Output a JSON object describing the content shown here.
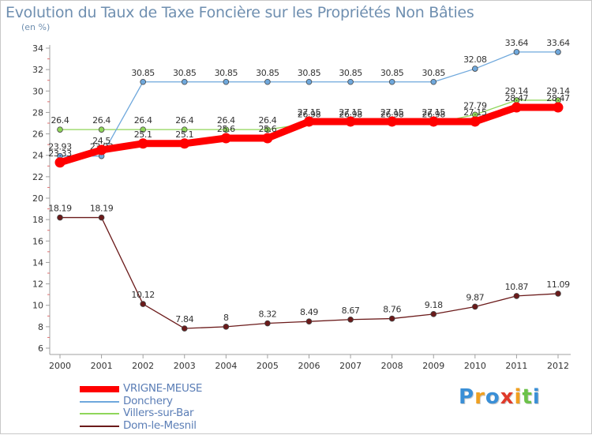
{
  "chart_data": {
    "type": "line",
    "title": "Evolution du Taux de Taxe Foncière sur les Propriétés Non Bâties",
    "subtitle": "(en %)",
    "x": [
      2000,
      2001,
      2002,
      2003,
      2004,
      2005,
      2006,
      2007,
      2008,
      2009,
      2010,
      2011,
      2012
    ],
    "ylim": [
      6,
      34
    ],
    "yticks": [
      6,
      8,
      10,
      12,
      14,
      16,
      18,
      20,
      22,
      24,
      26,
      28,
      30,
      32,
      34
    ],
    "grid": false,
    "legend_position": "bottom-left",
    "series": [
      {
        "name": "Dom-le-Mesnil",
        "color": "#6b1a1a",
        "style": "thin",
        "values": [
          18.19,
          18.19,
          10.12,
          7.84,
          8,
          8.32,
          8.49,
          8.67,
          8.76,
          9.18,
          9.87,
          10.87,
          11.09
        ],
        "labels": [
          "18.19",
          "18.19",
          "10.12",
          "7.84",
          "8",
          "8.32",
          "8.49",
          "8.67",
          "8.76",
          "9.18",
          "9.87",
          "10.87",
          "11.09"
        ]
      },
      {
        "name": "Villers-sur-Bar",
        "color": "#8fd65a",
        "style": "thin",
        "values": [
          26.4,
          26.4,
          26.4,
          26.4,
          26.4,
          26.4,
          26.98,
          26.98,
          26.98,
          26.98,
          27.79,
          29.14,
          29.14
        ],
        "labels": [
          "26.4",
          "26.4",
          "26.4",
          "26.4",
          "26.4",
          "26.4",
          "26.98",
          "26.98",
          "26.98",
          "26.98",
          "27.79",
          "29.14",
          "29.14"
        ]
      },
      {
        "name": "Donchery",
        "color": "#6fa8dc",
        "style": "thin",
        "values": [
          23.93,
          23.93,
          30.85,
          30.85,
          30.85,
          30.85,
          30.85,
          30.85,
          30.85,
          30.85,
          32.08,
          33.64,
          33.64
        ],
        "labels": [
          "23.93",
          "23.93",
          "30.85",
          "30.85",
          "30.85",
          "30.85",
          "30.85",
          "30.85",
          "30.85",
          "30.85",
          "32.08",
          "33.64",
          "33.64"
        ]
      },
      {
        "name": "VRIGNE-MEUSE",
        "color": "#ff0000",
        "style": "thick",
        "values": [
          23.33,
          24.5,
          25.1,
          25.1,
          25.6,
          25.6,
          27.15,
          27.15,
          27.15,
          27.15,
          27.15,
          28.47,
          28.47
        ],
        "labels": [
          "23.33",
          "24.5",
          "25.1",
          "25.1",
          "25.6",
          "25.6",
          "27.15",
          "27.15",
          "27.15",
          "27.15",
          "27.15",
          "28.47",
          "28.47"
        ]
      }
    ]
  },
  "legend": {
    "items": [
      {
        "name": "VRIGNE-MEUSE",
        "color": "#ff0000"
      },
      {
        "name": "Donchery",
        "color": "#6fa8dc"
      },
      {
        "name": "Villers-sur-Bar",
        "color": "#8fd65a"
      },
      {
        "name": "Dom-le-Mesnil",
        "color": "#6b1a1a"
      }
    ]
  },
  "brand": {
    "letters": [
      "P",
      "r",
      "o",
      "x",
      "i",
      "t",
      "i"
    ],
    "colors": [
      "#3a8fd6",
      "#f0a020",
      "#3a8fd6",
      "#e03a2a",
      "#f0a020",
      "#6cc24a",
      "#3a8fd6"
    ]
  }
}
